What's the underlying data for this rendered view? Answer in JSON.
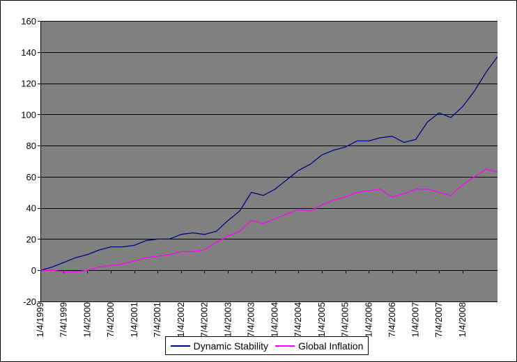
{
  "chart_data": {
    "type": "line",
    "title": "",
    "xlabel": "",
    "ylabel": "",
    "ylim": [
      -20,
      160
    ],
    "yticks": [
      -20,
      0,
      20,
      40,
      60,
      80,
      100,
      120,
      140,
      160
    ],
    "xticks": [
      "1/4/1999",
      "7/4/1999",
      "1/4/2000",
      "7/4/2000",
      "1/4/2001",
      "7/4/2001",
      "1/4/2002",
      "7/4/2002",
      "1/4/2003",
      "7/4/2003",
      "1/4/2004",
      "7/4/2004",
      "1/4/2005",
      "7/4/2005",
      "1/4/2006",
      "7/4/2006",
      "1/4/2007",
      "7/4/2007",
      "1/4/2008"
    ],
    "xlim": [
      "1/4/1999",
      "10/1/2008"
    ],
    "grid": "horizontal",
    "plot_background": "#808080",
    "legend_position": "bottom",
    "x": [
      "1/4/1999",
      "4/4/1999",
      "7/4/1999",
      "10/4/1999",
      "1/4/2000",
      "4/4/2000",
      "7/4/2000",
      "10/4/2000",
      "1/4/2001",
      "4/4/2001",
      "7/4/2001",
      "10/4/2001",
      "1/4/2002",
      "4/4/2002",
      "7/4/2002",
      "10/4/2002",
      "1/4/2003",
      "4/4/2003",
      "7/4/2003",
      "10/4/2003",
      "1/4/2004",
      "4/4/2004",
      "7/4/2004",
      "10/4/2004",
      "1/4/2005",
      "4/4/2005",
      "7/4/2005",
      "10/4/2005",
      "1/4/2006",
      "4/4/2006",
      "7/4/2006",
      "10/4/2006",
      "1/4/2007",
      "4/4/2007",
      "7/4/2007",
      "10/4/2007",
      "1/4/2008",
      "4/4/2008",
      "7/4/2008",
      "10/1/2008"
    ],
    "series": [
      {
        "name": "Dynamic Stability",
        "color": "#000080",
        "values": [
          0,
          2,
          5,
          8,
          10,
          13,
          15,
          15,
          16,
          19,
          20,
          20,
          23,
          24,
          23,
          25,
          32,
          38,
          50,
          48,
          52,
          58,
          64,
          68,
          74,
          77,
          79,
          83,
          83,
          85,
          86,
          82,
          84,
          95,
          101,
          98,
          105,
          115,
          127,
          137
        ]
      },
      {
        "name": "Global Inflation",
        "color": "#FF00FF",
        "values": [
          0,
          0,
          -1,
          -1,
          0,
          2,
          3,
          4,
          6,
          8,
          9,
          10,
          12,
          12,
          13,
          18,
          22,
          25,
          32,
          30,
          33,
          36,
          39,
          38,
          42,
          45,
          47,
          50,
          51,
          52,
          47,
          49,
          52,
          52,
          50,
          48,
          55,
          60,
          65,
          63
        ]
      }
    ]
  }
}
